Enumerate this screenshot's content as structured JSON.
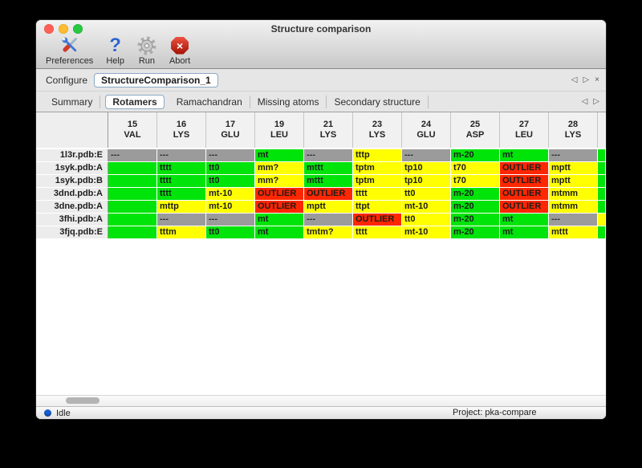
{
  "window": {
    "title": "Structure comparison"
  },
  "traffic_lights": [
    "close",
    "minimize",
    "zoom"
  ],
  "toolbar": {
    "items": [
      {
        "label": "Preferences",
        "icon": "tools-icon"
      },
      {
        "label": "Help",
        "icon": "help-icon",
        "glyph": "?"
      },
      {
        "label": "Run",
        "icon": "gear-icon"
      },
      {
        "label": "Abort",
        "icon": "abort-icon",
        "glyph": "×"
      }
    ]
  },
  "configure": {
    "label": "Configure",
    "value": "StructureComparison_1"
  },
  "nav_icons": {
    "prev": "◁",
    "next": "▷",
    "close": "×"
  },
  "tabs": {
    "items": [
      "Summary",
      "Rotamers",
      "Ramachandran",
      "Missing atoms",
      "Secondary structure"
    ],
    "selected": "Rotamers"
  },
  "colors": {
    "green": "#00e40a",
    "yellow": "#ffff00",
    "red": "#ff2600",
    "gray": "#9b9b9b"
  },
  "table": {
    "columns": [
      {
        "num": "15",
        "res": "VAL"
      },
      {
        "num": "16",
        "res": "LYS"
      },
      {
        "num": "17",
        "res": "GLU"
      },
      {
        "num": "19",
        "res": "LEU"
      },
      {
        "num": "21",
        "res": "LYS"
      },
      {
        "num": "23",
        "res": "LYS"
      },
      {
        "num": "24",
        "res": "GLU"
      },
      {
        "num": "25",
        "res": "ASP"
      },
      {
        "num": "27",
        "res": "LEU"
      },
      {
        "num": "28",
        "res": "LYS"
      }
    ],
    "rows": [
      {
        "label": "1l3r.pdb:E",
        "overflow_color": "green",
        "cells": [
          {
            "text": "---",
            "color": "gray"
          },
          {
            "text": "---",
            "color": "gray"
          },
          {
            "text": "---",
            "color": "gray"
          },
          {
            "text": "mt",
            "color": "green"
          },
          {
            "text": "---",
            "color": "gray"
          },
          {
            "text": "tttp",
            "color": "yellow"
          },
          {
            "text": "---",
            "color": "gray"
          },
          {
            "text": "m-20",
            "color": "green"
          },
          {
            "text": "mt",
            "color": "green"
          },
          {
            "text": "---",
            "color": "gray"
          }
        ]
      },
      {
        "label": "1syk.pdb:A",
        "overflow_color": "green",
        "cells": [
          {
            "text": "",
            "color": "green"
          },
          {
            "text": "tttt",
            "color": "green"
          },
          {
            "text": "tt0",
            "color": "green"
          },
          {
            "text": "mm?",
            "color": "yellow"
          },
          {
            "text": "mttt",
            "color": "green"
          },
          {
            "text": "tptm",
            "color": "yellow"
          },
          {
            "text": "tp10",
            "color": "yellow"
          },
          {
            "text": "t70",
            "color": "yellow"
          },
          {
            "text": "OUTLIER",
            "color": "red"
          },
          {
            "text": "mptt",
            "color": "yellow"
          }
        ]
      },
      {
        "label": "1syk.pdb:B",
        "overflow_color": "green",
        "cells": [
          {
            "text": "",
            "color": "green"
          },
          {
            "text": "tttt",
            "color": "green"
          },
          {
            "text": "tt0",
            "color": "green"
          },
          {
            "text": "mm?",
            "color": "yellow"
          },
          {
            "text": "mttt",
            "color": "green"
          },
          {
            "text": "tptm",
            "color": "yellow"
          },
          {
            "text": "tp10",
            "color": "yellow"
          },
          {
            "text": "t70",
            "color": "yellow"
          },
          {
            "text": "OUTLIER",
            "color": "red"
          },
          {
            "text": "mptt",
            "color": "yellow"
          }
        ]
      },
      {
        "label": "3dnd.pdb:A",
        "overflow_color": "green",
        "cells": [
          {
            "text": "",
            "color": "green"
          },
          {
            "text": "tttt",
            "color": "green"
          },
          {
            "text": "mt-10",
            "color": "yellow"
          },
          {
            "text": "OUTLIER",
            "color": "red"
          },
          {
            "text": "OUTLIER",
            "color": "red"
          },
          {
            "text": "tttt",
            "color": "yellow"
          },
          {
            "text": "tt0",
            "color": "yellow"
          },
          {
            "text": "m-20",
            "color": "green"
          },
          {
            "text": "OUTLIER",
            "color": "red"
          },
          {
            "text": "mtmm",
            "color": "yellow"
          }
        ]
      },
      {
        "label": "3dne.pdb:A",
        "overflow_color": "green",
        "cells": [
          {
            "text": "",
            "color": "green"
          },
          {
            "text": "mttp",
            "color": "yellow"
          },
          {
            "text": "mt-10",
            "color": "yellow"
          },
          {
            "text": "OUTLIER",
            "color": "red"
          },
          {
            "text": "mptt",
            "color": "yellow"
          },
          {
            "text": "ttpt",
            "color": "yellow"
          },
          {
            "text": "mt-10",
            "color": "yellow"
          },
          {
            "text": "m-20",
            "color": "green"
          },
          {
            "text": "OUTLIER",
            "color": "red"
          },
          {
            "text": "mtmm",
            "color": "yellow"
          }
        ]
      },
      {
        "label": "3fhi.pdb:A",
        "overflow_color": "yellow",
        "cells": [
          {
            "text": "",
            "color": "green"
          },
          {
            "text": "---",
            "color": "gray"
          },
          {
            "text": "---",
            "color": "gray"
          },
          {
            "text": "mt",
            "color": "green"
          },
          {
            "text": "---",
            "color": "gray"
          },
          {
            "text": "OUTLIER",
            "color": "red"
          },
          {
            "text": "tt0",
            "color": "yellow"
          },
          {
            "text": "m-20",
            "color": "green"
          },
          {
            "text": "mt",
            "color": "green"
          },
          {
            "text": "---",
            "color": "gray"
          }
        ]
      },
      {
        "label": "3fjq.pdb:E",
        "overflow_color": "green",
        "cells": [
          {
            "text": "",
            "color": "green"
          },
          {
            "text": "tttm",
            "color": "yellow"
          },
          {
            "text": "tt0",
            "color": "green"
          },
          {
            "text": "mt",
            "color": "green"
          },
          {
            "text": "tmtm?",
            "color": "yellow"
          },
          {
            "text": "tttt",
            "color": "yellow"
          },
          {
            "text": "mt-10",
            "color": "yellow"
          },
          {
            "text": "m-20",
            "color": "green"
          },
          {
            "text": "mt",
            "color": "green"
          },
          {
            "text": "mttt",
            "color": "yellow"
          }
        ]
      }
    ]
  },
  "statusbar": {
    "status": "Idle",
    "project": "Project: pka-compare"
  }
}
